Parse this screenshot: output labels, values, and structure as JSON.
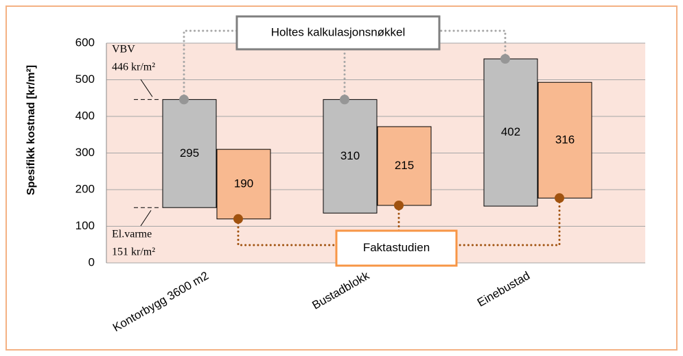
{
  "chart_data": {
    "type": "floating-bar",
    "y_label": "Spesifikk kostnad [kr/m²]",
    "categories": [
      "Kontorbygg 3600 m2",
      "Bustadblokk",
      "Einebustad"
    ],
    "series": [
      {
        "name": "Holtes kalkulasjonsnøkkel",
        "color": "#bfbfbf",
        "dot_color": "#969696",
        "line_color": "#a6a6a6",
        "box_color": "#7f7f7f",
        "dot_at": "top",
        "base": [
          151,
          136,
          155
        ],
        "values": [
          295,
          310,
          402
        ]
      },
      {
        "name": "Faktastudien",
        "color": "#f8b990",
        "dot_color": "#a0520f",
        "line_color": "#a0520f",
        "box_color": "#f79646",
        "dot_at": "bottom",
        "base": [
          120,
          157,
          177
        ],
        "values": [
          190,
          215,
          316
        ]
      }
    ],
    "annotations": [
      {
        "label": "VBV",
        "text": "446 kr/m²",
        "value": 446
      },
      {
        "label": "El.varme",
        "text": "151 kr/m²",
        "value": 151
      }
    ],
    "ylim": [
      0,
      600
    ],
    "yticks": [
      0,
      100,
      200,
      300,
      400,
      500,
      600
    ],
    "grid": true,
    "plot_color": "#fbe4dc"
  }
}
